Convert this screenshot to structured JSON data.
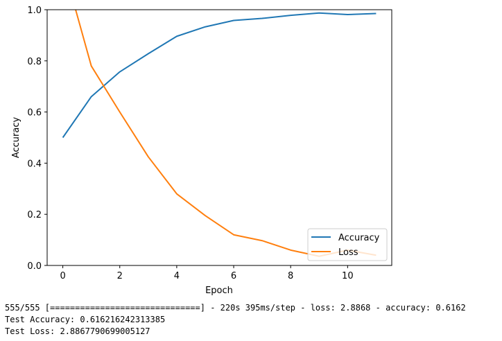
{
  "chart_data": {
    "type": "line",
    "xlabel": "Epoch",
    "ylabel": "Accuracy",
    "xlim": [
      -0.55,
      11.55
    ],
    "ylim": [
      0,
      1.0
    ],
    "xticks": [
      0,
      2,
      4,
      6,
      8,
      10
    ],
    "yticks": [
      0.0,
      0.2,
      0.4,
      0.6,
      0.8,
      1.0
    ],
    "xtick_labels": [
      "0",
      "2",
      "4",
      "6",
      "8",
      "10"
    ],
    "ytick_labels": [
      "0.0",
      "0.2",
      "0.4",
      "0.6",
      "0.8",
      "1.0"
    ],
    "grid": false,
    "legend_position": "lower-right",
    "x": [
      0,
      1,
      2,
      3,
      4,
      5,
      6,
      7,
      8,
      9,
      10,
      11
    ],
    "series": [
      {
        "name": "Accuracy",
        "color": "#1f77b4",
        "values": [
          0.5,
          0.66,
          0.757,
          0.828,
          0.896,
          0.933,
          0.958,
          0.966,
          0.978,
          0.987,
          0.981,
          0.985
        ]
      },
      {
        "name": "Loss",
        "color": "#ff7f0e",
        "values": [
          1.18,
          0.78,
          0.6,
          0.425,
          0.28,
          0.195,
          0.12,
          0.097,
          0.06,
          0.036,
          0.06,
          0.04
        ]
      }
    ]
  },
  "console": {
    "lines": [
      "555/555 [==============================] - 220s 395ms/step - loss: 2.8868 - accuracy: 0.6162",
      "Test Accuracy: 0.616216242313385",
      "Test Loss: 2.8867790699005127"
    ]
  }
}
